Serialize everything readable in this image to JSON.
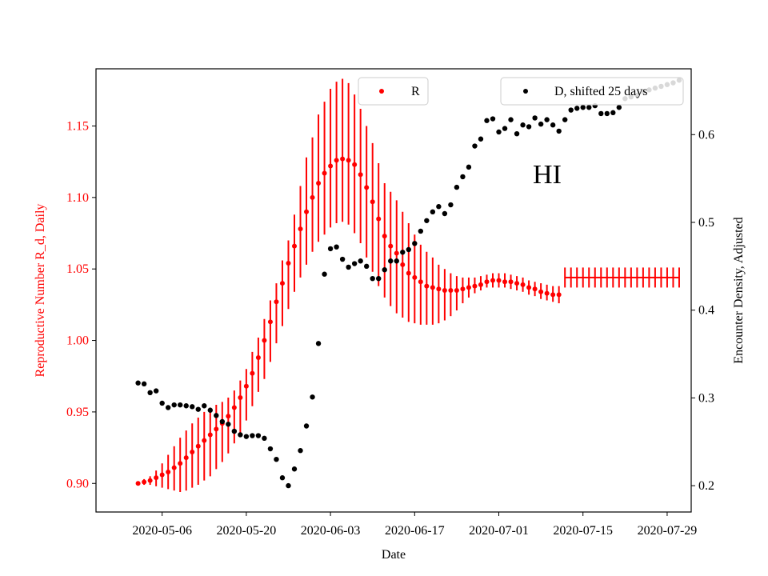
{
  "chart_data": {
    "type": "scatter",
    "xlabel": "Date",
    "ylabel_left": "Reproductive Number R_d, Daily",
    "ylabel_right": "Encounter Density, Adjusted",
    "annotation": "HI",
    "x_tick_labels": [
      "2020-05-06",
      "2020-05-20",
      "2020-06-03",
      "2020-06-17",
      "2020-07-01",
      "2020-07-15",
      "2020-07-29"
    ],
    "xlim": [
      "2020-04-25",
      "2020-08-02"
    ],
    "ylim_left": [
      0.88,
      1.19
    ],
    "ylim_right": [
      0.17,
      0.675
    ],
    "yticks_left": [
      0.9,
      0.95,
      1.0,
      1.05,
      1.1,
      1.15
    ],
    "yticks_right": [
      0.2,
      0.3,
      0.4,
      0.5,
      0.6
    ],
    "grid": false,
    "colors": {
      "R": "#ff0000",
      "D": "#000000"
    },
    "series": [
      {
        "name": "R",
        "axis": "left",
        "marker": "dot",
        "legend_position": "top-center",
        "x": [
          "2020-05-02",
          "2020-05-03",
          "2020-05-04",
          "2020-05-05",
          "2020-05-06",
          "2020-05-07",
          "2020-05-08",
          "2020-05-09",
          "2020-05-10",
          "2020-05-11",
          "2020-05-12",
          "2020-05-13",
          "2020-05-14",
          "2020-05-15",
          "2020-05-16",
          "2020-05-17",
          "2020-05-18",
          "2020-05-19",
          "2020-05-20",
          "2020-05-21",
          "2020-05-22",
          "2020-05-23",
          "2020-05-24",
          "2020-05-25",
          "2020-05-26",
          "2020-05-27",
          "2020-05-28",
          "2020-05-29",
          "2020-05-30",
          "2020-05-31",
          "2020-06-01",
          "2020-06-02",
          "2020-06-03",
          "2020-06-04",
          "2020-06-05",
          "2020-06-06",
          "2020-06-07",
          "2020-06-08",
          "2020-06-09",
          "2020-06-10",
          "2020-06-11",
          "2020-06-12",
          "2020-06-13",
          "2020-06-14",
          "2020-06-15",
          "2020-06-16",
          "2020-06-17",
          "2020-06-18",
          "2020-06-19",
          "2020-06-20",
          "2020-06-21",
          "2020-06-22",
          "2020-06-23",
          "2020-06-24",
          "2020-06-25",
          "2020-06-26",
          "2020-06-27",
          "2020-06-28",
          "2020-06-29",
          "2020-06-30",
          "2020-07-01",
          "2020-07-02",
          "2020-07-03",
          "2020-07-04",
          "2020-07-05",
          "2020-07-06",
          "2020-07-07",
          "2020-07-08",
          "2020-07-09",
          "2020-07-10",
          "2020-07-11",
          "2020-07-12",
          "2020-07-13",
          "2020-07-14",
          "2020-07-15",
          "2020-07-16",
          "2020-07-17",
          "2020-07-18",
          "2020-07-19",
          "2020-07-20",
          "2020-07-21",
          "2020-07-22",
          "2020-07-23",
          "2020-07-24",
          "2020-07-25",
          "2020-07-26",
          "2020-07-27",
          "2020-07-28",
          "2020-07-29",
          "2020-07-30",
          "2020-07-31"
        ],
        "values": [
          0.9,
          0.901,
          0.902,
          0.904,
          0.906,
          0.908,
          0.911,
          0.914,
          0.918,
          0.922,
          0.926,
          0.93,
          0.934,
          0.938,
          0.942,
          0.947,
          0.953,
          0.96,
          0.968,
          0.977,
          0.988,
          1.0,
          1.013,
          1.027,
          1.04,
          1.054,
          1.066,
          1.078,
          1.09,
          1.1,
          1.11,
          1.117,
          1.122,
          1.126,
          1.127,
          1.126,
          1.123,
          1.116,
          1.107,
          1.097,
          1.085,
          1.073,
          1.066,
          1.061,
          1.053,
          1.047,
          1.044,
          1.041,
          1.038,
          1.037,
          1.036,
          1.035,
          1.035,
          1.035,
          1.036,
          1.037,
          1.038,
          1.039,
          1.041,
          1.042,
          1.042,
          1.041,
          1.041,
          1.04,
          1.039,
          1.037,
          1.036,
          1.034,
          1.033,
          1.032,
          1.032,
          1.044,
          1.044,
          1.044,
          1.044,
          1.044,
          1.044,
          1.044,
          1.044,
          1.044,
          1.044,
          1.044,
          1.044,
          1.044,
          1.044,
          1.044,
          1.044,
          1.044,
          1.044,
          1.044,
          1.044
        ],
        "lower": [
          0.899,
          0.899,
          0.899,
          0.898,
          0.897,
          0.896,
          0.895,
          0.894,
          0.895,
          0.897,
          0.899,
          0.902,
          0.905,
          0.91,
          0.915,
          0.921,
          0.928,
          0.935,
          0.944,
          0.954,
          0.964,
          0.973,
          0.985,
          0.998,
          1.01,
          1.022,
          1.034,
          1.044,
          1.053,
          1.062,
          1.069,
          1.074,
          1.079,
          1.082,
          1.083,
          1.081,
          1.075,
          1.068,
          1.058,
          1.048,
          1.038,
          1.03,
          1.024,
          1.019,
          1.016,
          1.013,
          1.012,
          1.011,
          1.011,
          1.011,
          1.012,
          1.014,
          1.017,
          1.021,
          1.026,
          1.03,
          1.033,
          1.035,
          1.037,
          1.037,
          1.037,
          1.037,
          1.036,
          1.035,
          1.034,
          1.032,
          1.031,
          1.029,
          1.028,
          1.027,
          1.026,
          1.037,
          1.037,
          1.037,
          1.037,
          1.037,
          1.037,
          1.037,
          1.037,
          1.037,
          1.037,
          1.037,
          1.037,
          1.037,
          1.037,
          1.037,
          1.037,
          1.037,
          1.037,
          1.037,
          1.037
        ],
        "upper": [
          0.901,
          0.903,
          0.905,
          0.909,
          0.914,
          0.92,
          0.926,
          0.932,
          0.937,
          0.942,
          0.946,
          0.95,
          0.953,
          0.955,
          0.957,
          0.96,
          0.965,
          0.972,
          0.98,
          0.992,
          1.002,
          1.015,
          1.028,
          1.04,
          1.056,
          1.07,
          1.088,
          1.108,
          1.128,
          1.142,
          1.158,
          1.167,
          1.176,
          1.181,
          1.183,
          1.18,
          1.172,
          1.162,
          1.15,
          1.138,
          1.124,
          1.11,
          1.104,
          1.098,
          1.09,
          1.082,
          1.074,
          1.067,
          1.062,
          1.058,
          1.053,
          1.05,
          1.047,
          1.045,
          1.044,
          1.044,
          1.044,
          1.045,
          1.046,
          1.047,
          1.047,
          1.047,
          1.046,
          1.045,
          1.044,
          1.042,
          1.041,
          1.04,
          1.039,
          1.038,
          1.038,
          1.051,
          1.051,
          1.051,
          1.051,
          1.051,
          1.051,
          1.051,
          1.051,
          1.051,
          1.051,
          1.051,
          1.051,
          1.051,
          1.051,
          1.051,
          1.051,
          1.051,
          1.051,
          1.051,
          1.051
        ]
      },
      {
        "name": "D, shifted 25 days",
        "axis": "right",
        "marker": "dot",
        "legend_position": "top-right",
        "x": [
          "2020-05-02",
          "2020-05-03",
          "2020-05-04",
          "2020-05-05",
          "2020-05-06",
          "2020-05-07",
          "2020-05-08",
          "2020-05-09",
          "2020-05-10",
          "2020-05-11",
          "2020-05-12",
          "2020-05-13",
          "2020-05-14",
          "2020-05-15",
          "2020-05-16",
          "2020-05-17",
          "2020-05-18",
          "2020-05-19",
          "2020-05-20",
          "2020-05-21",
          "2020-05-22",
          "2020-05-23",
          "2020-05-24",
          "2020-05-25",
          "2020-05-26",
          "2020-05-27",
          "2020-05-28",
          "2020-05-29",
          "2020-05-30",
          "2020-05-31",
          "2020-06-01",
          "2020-06-02",
          "2020-06-03",
          "2020-06-04",
          "2020-06-05",
          "2020-06-06",
          "2020-06-07",
          "2020-06-08",
          "2020-06-09",
          "2020-06-10",
          "2020-06-11",
          "2020-06-12",
          "2020-06-13",
          "2020-06-14",
          "2020-06-15",
          "2020-06-16",
          "2020-06-17",
          "2020-06-18",
          "2020-06-19",
          "2020-06-20",
          "2020-06-21",
          "2020-06-22",
          "2020-06-23",
          "2020-06-24",
          "2020-06-25",
          "2020-06-26",
          "2020-06-27",
          "2020-06-28",
          "2020-06-29",
          "2020-06-30",
          "2020-07-01",
          "2020-07-02",
          "2020-07-03",
          "2020-07-04",
          "2020-07-05",
          "2020-07-06",
          "2020-07-07",
          "2020-07-08",
          "2020-07-09",
          "2020-07-10",
          "2020-07-11",
          "2020-07-12",
          "2020-07-13",
          "2020-07-14",
          "2020-07-15",
          "2020-07-16",
          "2020-07-17",
          "2020-07-18",
          "2020-07-19",
          "2020-07-20",
          "2020-07-21",
          "2020-07-22",
          "2020-07-23",
          "2020-07-24",
          "2020-07-25",
          "2020-07-26",
          "2020-07-27",
          "2020-07-28",
          "2020-07-29",
          "2020-07-30",
          "2020-07-31"
        ],
        "values": [
          0.317,
          0.316,
          0.306,
          0.308,
          0.294,
          0.289,
          0.292,
          0.292,
          0.291,
          0.29,
          0.287,
          0.291,
          0.286,
          0.28,
          0.273,
          0.27,
          0.262,
          0.258,
          0.256,
          0.257,
          0.257,
          0.254,
          0.242,
          0.23,
          0.209,
          0.2,
          0.219,
          0.24,
          0.268,
          0.301,
          0.362,
          0.441,
          0.47,
          0.472,
          0.458,
          0.449,
          0.453,
          0.456,
          0.45,
          0.436,
          0.436,
          0.446,
          0.456,
          0.456,
          0.466,
          0.469,
          0.476,
          0.49,
          0.502,
          0.512,
          0.518,
          0.51,
          0.52,
          0.54,
          0.552,
          0.563,
          0.587,
          0.595,
          0.616,
          0.618,
          0.603,
          0.607,
          0.617,
          0.601,
          0.611,
          0.609,
          0.619,
          0.612,
          0.617,
          0.611,
          0.604,
          0.617,
          0.628,
          0.63,
          0.631,
          0.631,
          0.633,
          0.624,
          0.624,
          0.625,
          0.631,
          0.641,
          0.643,
          0.645,
          0.649,
          0.651,
          0.653,
          0.655,
          0.657,
          0.659,
          0.662
        ]
      }
    ]
  }
}
